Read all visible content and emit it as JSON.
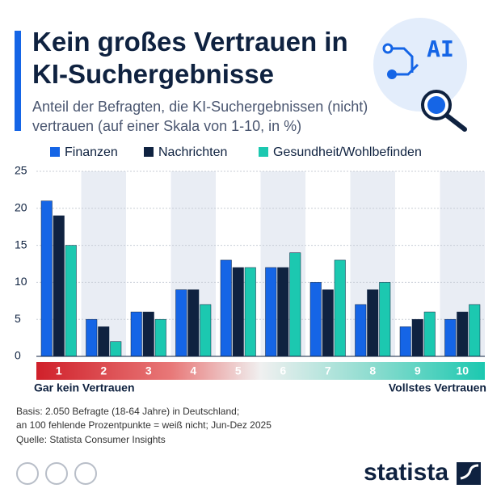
{
  "chart_data": {
    "type": "bar",
    "title": "Kein großes Vertrauen in KI-Suchergebnisse",
    "subtitle": "Anteil der Befragten, die KI-Suchergebnissen (nicht) vertrauen (auf einer Skala von 1-10, in %)",
    "icon_text": "AI",
    "categories": [
      "1",
      "2",
      "3",
      "4",
      "5",
      "6",
      "7",
      "8",
      "9",
      "10"
    ],
    "series": [
      {
        "name": "Finanzen",
        "color": "#1565e6",
        "values": [
          21,
          5,
          6,
          9,
          13,
          12,
          10,
          7,
          4,
          5
        ]
      },
      {
        "name": "Nachrichten",
        "color": "#0f2240",
        "values": [
          19,
          4,
          6,
          9,
          12,
          12,
          9,
          9,
          5,
          6
        ]
      },
      {
        "name": "Gesundheit/Wohlbefinden",
        "color": "#1cc8b0",
        "values": [
          15,
          2,
          5,
          7,
          12,
          14,
          13,
          10,
          6,
          7
        ]
      }
    ],
    "ylim": [
      0,
      25
    ],
    "yticks": [
      0,
      5,
      10,
      15,
      20,
      25
    ],
    "grid": true,
    "legend": "top",
    "x_label_left": "Gar kein Vertrauen",
    "x_label_right": "Vollstes Vertrauen",
    "notes": [
      "Basis: 2.050 Befragte (18-64 Jahre) in Deutschland;",
      "an 100 fehlende Prozentpunkte = weiß nicht; Jun-Dez 2025"
    ],
    "source": "Quelle: Statista Consumer Insights",
    "logo": "statista"
  }
}
